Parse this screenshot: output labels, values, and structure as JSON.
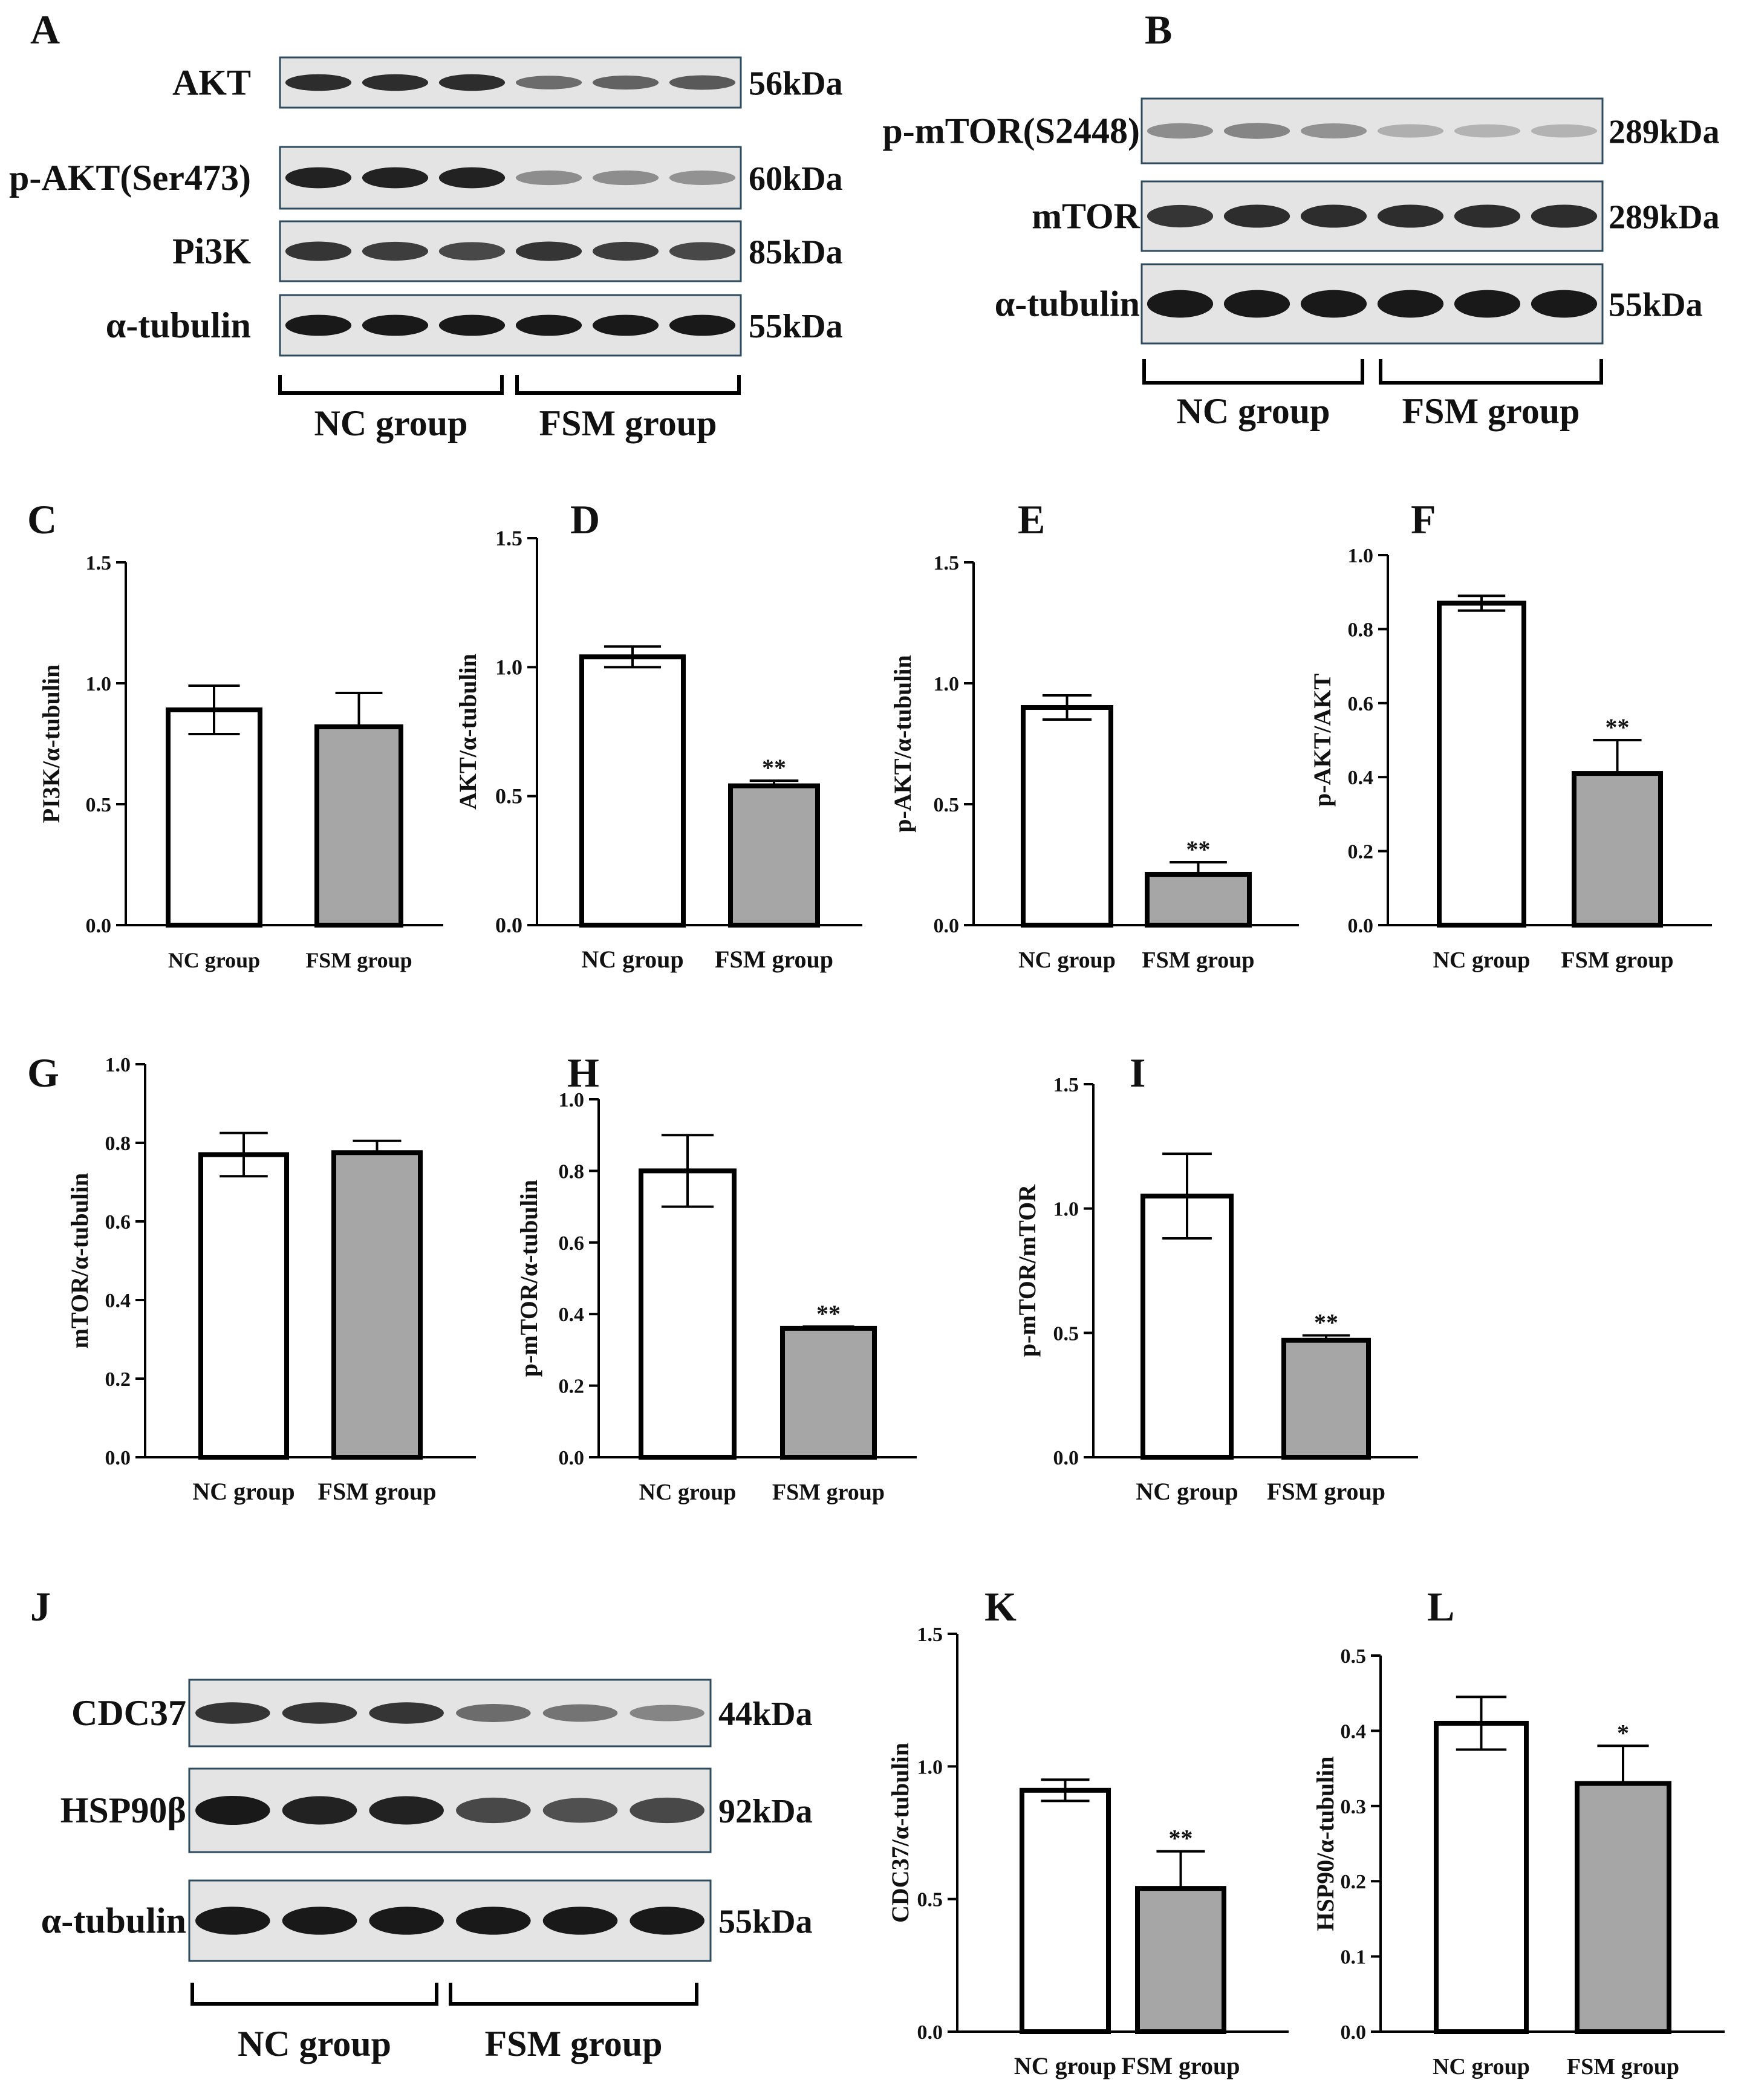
{
  "blots": {
    "A": {
      "label": "A",
      "rows": [
        {
          "name": "AKT",
          "kda": "56kDa",
          "intensity": [
            0.85,
            0.85,
            0.85,
            0.5,
            0.55,
            0.6
          ]
        },
        {
          "name": "p-AKT(Ser473)",
          "kda": "60kDa",
          "intensity": [
            0.9,
            0.9,
            0.9,
            0.3,
            0.3,
            0.28
          ]
        },
        {
          "name": "Pi3K",
          "kda": "85kDa",
          "intensity": [
            0.8,
            0.75,
            0.7,
            0.8,
            0.75,
            0.7
          ]
        },
        {
          "name": "α-tubulin",
          "kda": "55kDa",
          "intensity": [
            0.95,
            0.95,
            0.95,
            0.95,
            0.95,
            0.95
          ]
        }
      ],
      "groups": [
        "NC group",
        "FSM group"
      ]
    },
    "B": {
      "label": "B",
      "rows": [
        {
          "name": "p-mTOR(S2448)",
          "kda": "289kDa",
          "intensity": [
            0.3,
            0.35,
            0.28,
            0.12,
            0.1,
            0.1
          ]
        },
        {
          "name": "mTOR",
          "kda": "289kDa",
          "intensity": [
            0.8,
            0.85,
            0.85,
            0.85,
            0.85,
            0.85
          ]
        },
        {
          "name": "α-tubulin",
          "kda": "55kDa",
          "intensity": [
            0.95,
            0.95,
            0.95,
            0.95,
            0.95,
            0.95
          ]
        }
      ],
      "groups": [
        "NC group",
        "FSM group"
      ]
    },
    "J": {
      "label": "J",
      "rows": [
        {
          "name": "CDC37",
          "kda": "44kDa",
          "intensity": [
            0.8,
            0.8,
            0.8,
            0.5,
            0.45,
            0.35
          ]
        },
        {
          "name": "HSP90β",
          "kda": "92kDa",
          "intensity": [
            0.95,
            0.9,
            0.9,
            0.7,
            0.65,
            0.7
          ]
        },
        {
          "name": "α-tubulin",
          "kda": "55kDa",
          "intensity": [
            0.95,
            0.95,
            0.95,
            0.95,
            0.95,
            0.95
          ]
        }
      ],
      "groups": [
        "NC group",
        "FSM group"
      ]
    }
  },
  "colors": {
    "nc_fill": "#ffffff",
    "fsm_fill": "#a6a6a6",
    "bar_stroke": "#000000",
    "blot_bg": "#e4e4e4",
    "blot_border": "#2f4b5e",
    "band": "#111111"
  },
  "chart_data": [
    {
      "panel": "C",
      "type": "bar",
      "categories": [
        "NC group",
        "FSM group"
      ],
      "values": [
        0.89,
        0.82
      ],
      "errors": [
        0.1,
        0.14
      ],
      "significance": [
        "",
        ""
      ],
      "ylabel": "PI3K/α-tubulin",
      "ylim": [
        0,
        1.5
      ],
      "yticks": [
        "0.0",
        "0.5",
        "1.0",
        "1.5"
      ]
    },
    {
      "panel": "D",
      "type": "bar",
      "categories": [
        "NC group",
        "FSM group"
      ],
      "values": [
        1.04,
        0.54
      ],
      "errors": [
        0.04,
        0.02
      ],
      "significance": [
        "",
        "**"
      ],
      "ylabel": "AKT/α-tubulin",
      "ylim": [
        0,
        1.5
      ],
      "yticks": [
        "0.0",
        "0.5",
        "1.0",
        "1.5"
      ]
    },
    {
      "panel": "E",
      "type": "bar",
      "categories": [
        "NC group",
        "FSM group"
      ],
      "values": [
        0.9,
        0.21
      ],
      "errors": [
        0.05,
        0.05
      ],
      "significance": [
        "",
        "**"
      ],
      "ylabel": "p-AKT/α-tubulin",
      "ylim": [
        0,
        1.5
      ],
      "yticks": [
        "0.0",
        "0.5",
        "1.0",
        "1.5"
      ]
    },
    {
      "panel": "F",
      "type": "bar",
      "categories": [
        "NC group",
        "FSM group"
      ],
      "values": [
        0.87,
        0.41
      ],
      "errors": [
        0.02,
        0.09
      ],
      "significance": [
        "",
        "**"
      ],
      "ylabel": "p-AKT/AKT",
      "ylim": [
        0,
        1.0
      ],
      "yticks": [
        "0.0",
        "0.2",
        "0.4",
        "0.6",
        "0.8",
        "1.0"
      ]
    },
    {
      "panel": "G",
      "type": "bar",
      "categories": [
        "NC group",
        "FSM group"
      ],
      "values": [
        0.77,
        0.775
      ],
      "errors": [
        0.055,
        0.03
      ],
      "significance": [
        "",
        ""
      ],
      "ylabel": "mTOR/α-tubulin",
      "ylim": [
        0,
        1.0
      ],
      "yticks": [
        "0.0",
        "0.2",
        "0.4",
        "0.6",
        "0.8",
        "1.0"
      ]
    },
    {
      "panel": "H",
      "type": "bar",
      "categories": [
        "NC group",
        "FSM group"
      ],
      "values": [
        0.8,
        0.36
      ],
      "errors": [
        0.1,
        0.005
      ],
      "significance": [
        "",
        "**"
      ],
      "ylabel": "p-mTOR/α-tubulin",
      "ylim": [
        0,
        1.0
      ],
      "yticks": [
        "0.0",
        "0.2",
        "0.4",
        "0.6",
        "0.8",
        "1.0"
      ]
    },
    {
      "panel": "I",
      "type": "bar",
      "categories": [
        "NC group",
        "FSM group"
      ],
      "values": [
        1.05,
        0.47
      ],
      "errors": [
        0.17,
        0.02
      ],
      "significance": [
        "",
        "**"
      ],
      "ylabel": "p-mTOR/mTOR",
      "ylim": [
        0,
        1.5
      ],
      "yticks": [
        "0.0",
        "0.5",
        "1.0",
        "1.5"
      ]
    },
    {
      "panel": "K",
      "type": "bar",
      "categories": [
        "NC group",
        "FSM group"
      ],
      "values": [
        0.91,
        0.54
      ],
      "errors": [
        0.04,
        0.14
      ],
      "significance": [
        "",
        "**"
      ],
      "ylabel": "CDC37/α-tubulin",
      "ylim": [
        0,
        1.5
      ],
      "yticks": [
        "0.0",
        "0.5",
        "1.0",
        "1.5"
      ]
    },
    {
      "panel": "L",
      "type": "bar",
      "categories": [
        "NC group",
        "FSM group"
      ],
      "values": [
        0.41,
        0.33
      ],
      "errors": [
        0.035,
        0.05
      ],
      "significance": [
        "",
        "*"
      ],
      "ylabel": "HSP90/α-tubulin",
      "ylim": [
        0,
        0.5
      ],
      "yticks": [
        "0.0",
        "0.1",
        "0.2",
        "0.3",
        "0.4",
        "0.5"
      ]
    }
  ]
}
